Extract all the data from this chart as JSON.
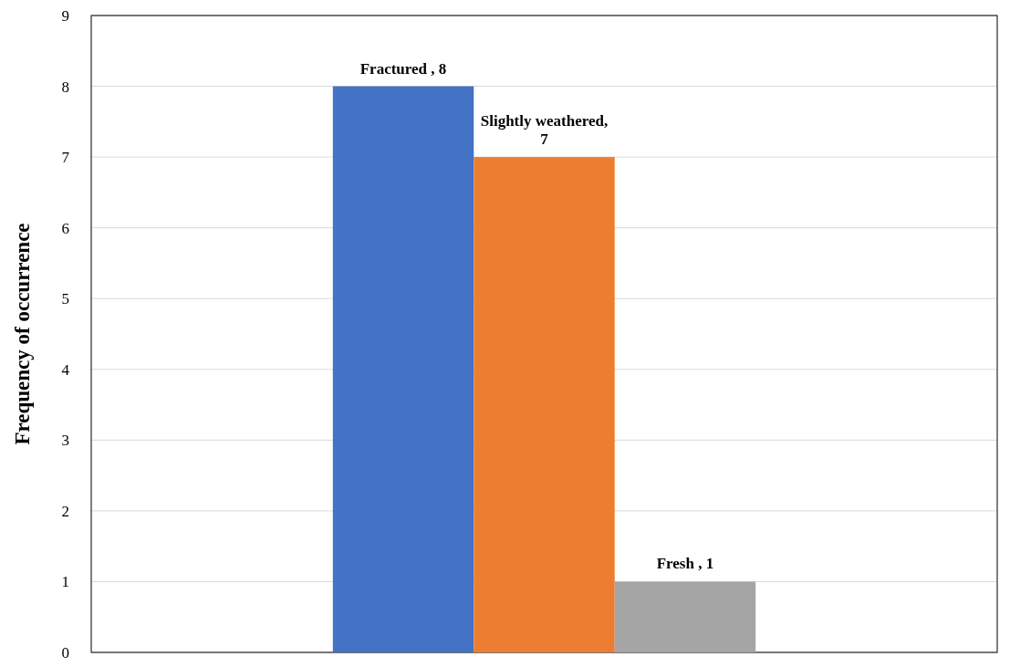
{
  "chart_data": {
    "type": "bar",
    "ylabel": "Frequency of occurrence",
    "categories": [
      null
    ],
    "series": [
      {
        "color": "#4472c4",
        "values": [
          8
        ],
        "value_labels": [
          "Fractured , 8"
        ]
      },
      {
        "color": "#ed7d31",
        "values": [
          7
        ],
        "value_labels": [
          "Slightly weathered, 7"
        ]
      },
      {
        "color": "#a5a5a5",
        "values": [
          1
        ],
        "value_labels": [
          "Fresh , 1"
        ]
      }
    ],
    "ylim": [
      0,
      9
    ],
    "yticks": [
      0,
      1,
      2,
      3,
      4,
      5,
      6,
      7,
      8,
      9
    ],
    "grid": "y"
  }
}
